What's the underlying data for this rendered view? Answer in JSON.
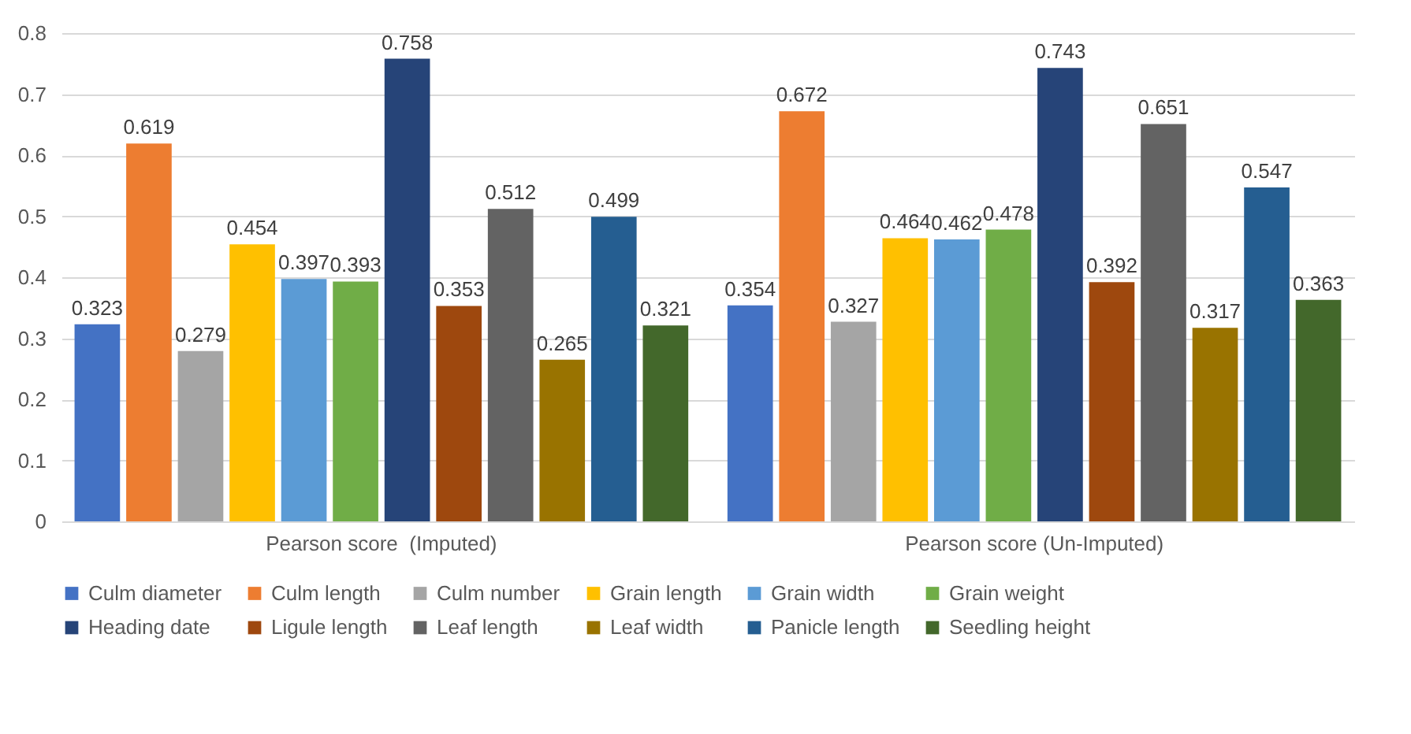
{
  "chart_data": {
    "type": "bar",
    "categories": [
      "Pearson score  (Imputed)",
      "Pearson score (Un-Imputed)"
    ],
    "series": [
      {
        "name": "Culm diameter",
        "color": "#4472c4",
        "values": [
          0.323,
          0.354
        ]
      },
      {
        "name": "Culm length",
        "color": "#ed7d31",
        "values": [
          0.619,
          0.672
        ]
      },
      {
        "name": "Culm number",
        "color": "#a5a5a5",
        "values": [
          0.279,
          0.327
        ]
      },
      {
        "name": "Grain length",
        "color": "#ffc000",
        "values": [
          0.454,
          0.464
        ]
      },
      {
        "name": "Grain width",
        "color": "#5b9bd5",
        "values": [
          0.397,
          0.462
        ]
      },
      {
        "name": "Grain weight",
        "color": "#70ad47",
        "values": [
          0.393,
          0.478
        ]
      },
      {
        "name": "Heading date",
        "color": "#264478",
        "values": [
          0.758,
          0.743
        ]
      },
      {
        "name": "Ligule length",
        "color": "#9e480e",
        "values": [
          0.353,
          0.392
        ]
      },
      {
        "name": "Leaf length",
        "color": "#636363",
        "values": [
          0.512,
          0.651
        ]
      },
      {
        "name": "Leaf width",
        "color": "#997300",
        "values": [
          0.265,
          0.317
        ]
      },
      {
        "name": "Panicle length",
        "color": "#255e91",
        "values": [
          0.499,
          0.547
        ]
      },
      {
        "name": "Seedling height",
        "color": "#43682b",
        "values": [
          0.321,
          0.363
        ]
      }
    ],
    "ylim": [
      0,
      0.8
    ],
    "yticks": [
      0,
      0.1,
      0.2,
      0.3,
      0.4,
      0.5,
      0.6,
      0.7,
      0.8
    ],
    "grid": "y",
    "legend": "bottom",
    "data_labels": true
  }
}
